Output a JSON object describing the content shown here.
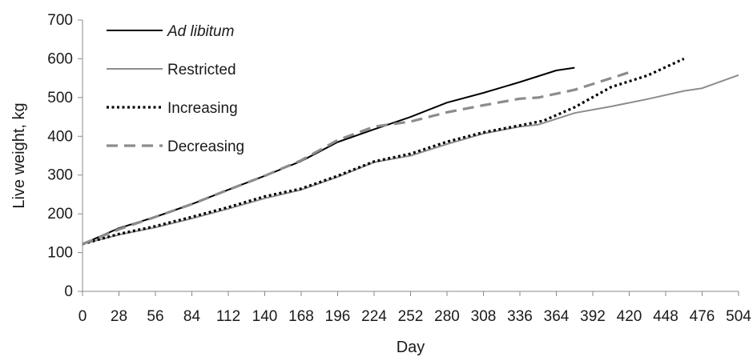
{
  "chart_data": {
    "type": "line",
    "title": "",
    "xlabel": "Day",
    "ylabel": "Live weight, kg",
    "xlim": [
      0,
      504
    ],
    "ylim": [
      0,
      700
    ],
    "x_ticks": [
      "0",
      "28",
      "56",
      "84",
      "112",
      "140",
      "168",
      "196",
      "224",
      "252",
      "280",
      "308",
      "336",
      "364",
      "392",
      "420",
      "448",
      "476",
      "504"
    ],
    "y_ticks": [
      "0",
      "100",
      "200",
      "300",
      "400",
      "500",
      "600",
      "700"
    ],
    "grid": false,
    "legend_position": "top-left",
    "series": [
      {
        "name": "Ad libitum",
        "italic": true,
        "color": "#000000",
        "dash": "solid",
        "points": [
          [
            0,
            122
          ],
          [
            28,
            163
          ],
          [
            56,
            192
          ],
          [
            84,
            225
          ],
          [
            112,
            262
          ],
          [
            140,
            298
          ],
          [
            168,
            336
          ],
          [
            196,
            385
          ],
          [
            224,
            418
          ],
          [
            252,
            450
          ],
          [
            280,
            487
          ],
          [
            308,
            512
          ],
          [
            336,
            540
          ],
          [
            364,
            570
          ],
          [
            378,
            577
          ]
        ]
      },
      {
        "name": "Restricted",
        "italic": false,
        "color": "#8c8c8c",
        "dash": "solid",
        "points": [
          [
            0,
            122
          ],
          [
            28,
            146
          ],
          [
            56,
            165
          ],
          [
            84,
            188
          ],
          [
            112,
            213
          ],
          [
            140,
            240
          ],
          [
            168,
            262
          ],
          [
            196,
            295
          ],
          [
            224,
            333
          ],
          [
            252,
            350
          ],
          [
            280,
            380
          ],
          [
            308,
            407
          ],
          [
            336,
            425
          ],
          [
            350,
            430
          ],
          [
            378,
            460
          ],
          [
            406,
            477
          ],
          [
            434,
            496
          ],
          [
            462,
            517
          ],
          [
            476,
            524
          ],
          [
            504,
            558
          ]
        ]
      },
      {
        "name": "Increasing",
        "italic": false,
        "color": "#000000",
        "dash": "dotted",
        "points": [
          [
            0,
            122
          ],
          [
            28,
            148
          ],
          [
            56,
            168
          ],
          [
            84,
            192
          ],
          [
            112,
            217
          ],
          [
            140,
            245
          ],
          [
            168,
            265
          ],
          [
            196,
            298
          ],
          [
            224,
            335
          ],
          [
            252,
            355
          ],
          [
            280,
            386
          ],
          [
            308,
            410
          ],
          [
            336,
            428
          ],
          [
            354,
            440
          ],
          [
            378,
            475
          ],
          [
            406,
            527
          ],
          [
            434,
            557
          ],
          [
            462,
            600
          ]
        ]
      },
      {
        "name": "Decreasing",
        "italic": false,
        "color": "#8c8c8c",
        "dash": "dashed",
        "points": [
          [
            0,
            122
          ],
          [
            28,
            160
          ],
          [
            56,
            192
          ],
          [
            84,
            225
          ],
          [
            112,
            262
          ],
          [
            140,
            298
          ],
          [
            168,
            338
          ],
          [
            196,
            390
          ],
          [
            224,
            425
          ],
          [
            252,
            438
          ],
          [
            280,
            462
          ],
          [
            308,
            480
          ],
          [
            336,
            497
          ],
          [
            350,
            500
          ],
          [
            378,
            520
          ],
          [
            420,
            565
          ]
        ]
      }
    ]
  }
}
